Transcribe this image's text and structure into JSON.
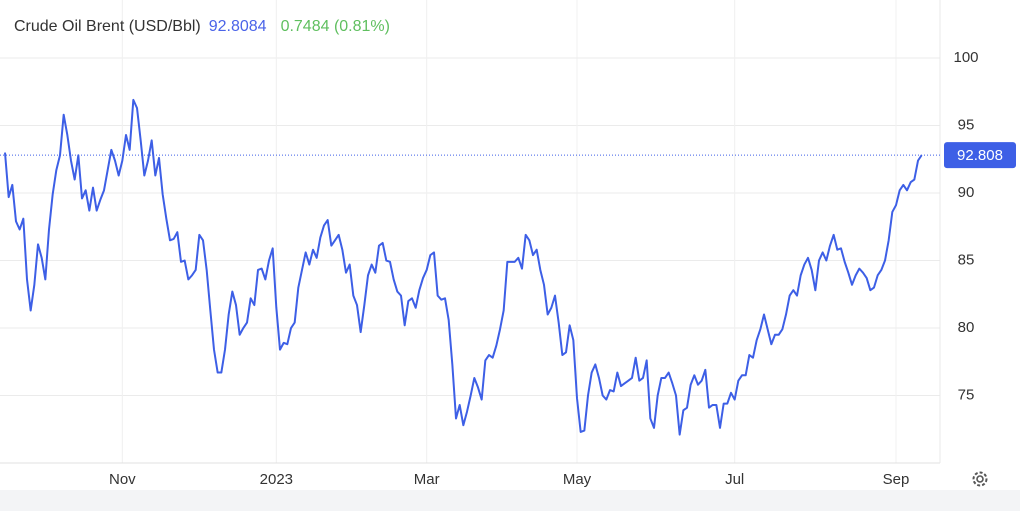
{
  "chart_data": {
    "type": "line",
    "title": "Crude Oil Brent (USD/Bbl)",
    "price": "92.8084",
    "change": "0.7484 (0.81%)",
    "series": [
      {
        "name": "Crude Oil Brent",
        "color": "#3d5fe6",
        "values": [
          93.0,
          89.7,
          90.6,
          87.9,
          87.3,
          88.1,
          83.6,
          81.3,
          83.2,
          86.2,
          85.2,
          83.6,
          87.3,
          89.9,
          91.7,
          92.8,
          95.8,
          94.3,
          92.4,
          91.0,
          92.8,
          89.6,
          90.2,
          88.7,
          90.4,
          88.7,
          89.5,
          90.2,
          91.7,
          93.2,
          92.4,
          91.3,
          92.4,
          94.3,
          93.2,
          96.9,
          96.3,
          93.9,
          91.3,
          92.4,
          93.9,
          91.3,
          92.6,
          89.9,
          88.1,
          86.5,
          86.6,
          87.1,
          84.9,
          85.0,
          83.6,
          83.9,
          84.3,
          86.9,
          86.5,
          84.3,
          81.3,
          78.4,
          76.7,
          76.7,
          78.4,
          81.0,
          82.7,
          81.7,
          79.5,
          80.0,
          80.4,
          82.2,
          81.7,
          84.3,
          84.4,
          83.6,
          85.0,
          85.9,
          81.5,
          78.4,
          78.9,
          78.8,
          80.0,
          80.4,
          83.0,
          84.3,
          85.6,
          84.7,
          85.8,
          85.2,
          86.7,
          87.6,
          88.0,
          86.1,
          86.5,
          86.9,
          85.8,
          84.1,
          84.7,
          82.4,
          81.7,
          79.7,
          81.7,
          83.9,
          84.7,
          84.1,
          86.1,
          86.3,
          85.0,
          84.9,
          83.6,
          82.7,
          82.4,
          80.2,
          82.0,
          82.2,
          81.5,
          82.8,
          83.7,
          84.3,
          85.4,
          85.6,
          82.4,
          82.1,
          82.2,
          80.6,
          77.3,
          73.3,
          74.3,
          72.8,
          73.8,
          75.0,
          76.3,
          75.6,
          74.7,
          77.6,
          78.0,
          77.8,
          78.7,
          79.9,
          81.3,
          84.9,
          84.9,
          84.9,
          85.2,
          84.4,
          86.9,
          86.5,
          85.4,
          85.8,
          84.3,
          83.2,
          81.0,
          81.5,
          82.4,
          80.4,
          78.0,
          78.2,
          80.2,
          79.1,
          74.8,
          72.3,
          72.4,
          75.0,
          76.7,
          77.3,
          76.3,
          75.0,
          74.7,
          75.4,
          75.3,
          76.7,
          75.7,
          75.9,
          76.1,
          76.3,
          77.8,
          76.1,
          76.3,
          77.6,
          73.3,
          72.6,
          75.0,
          76.3,
          76.3,
          76.7,
          75.9,
          75.0,
          72.1,
          73.9,
          74.1,
          75.8,
          76.5,
          75.8,
          76.1,
          76.9,
          74.1,
          74.3,
          74.3,
          72.6,
          74.4,
          74.4,
          75.2,
          74.7,
          76.1,
          76.5,
          76.5,
          78.0,
          77.8,
          79.1,
          79.9,
          81.0,
          79.9,
          78.8,
          79.5,
          79.5,
          79.9,
          81.0,
          82.4,
          82.8,
          82.4,
          83.9,
          84.7,
          85.2,
          84.3,
          82.8,
          85.0,
          85.6,
          85.0,
          86.1,
          86.9,
          85.8,
          85.9,
          84.9,
          84.1,
          83.2,
          83.9,
          84.4,
          84.1,
          83.7,
          82.8,
          83.0,
          83.9,
          84.3,
          85.0,
          86.5,
          88.6,
          89.1,
          90.2,
          90.6,
          90.2,
          90.8,
          91.0,
          92.4,
          92.8084
        ]
      }
    ],
    "last_price": {
      "value": 92.8084,
      "label": "92.808"
    },
    "xlim": [
      0,
      255
    ],
    "xticks": [
      {
        "value": 32,
        "label": "Nov"
      },
      {
        "value": 74,
        "label": "2023"
      },
      {
        "value": 115,
        "label": "Mar"
      },
      {
        "value": 156,
        "label": "May"
      },
      {
        "value": 199,
        "label": "Jul"
      },
      {
        "value": 243,
        "label": "Sep"
      }
    ],
    "ylim": [
      70,
      104.3
    ],
    "yticks": [
      75,
      80,
      85,
      90,
      95,
      100
    ],
    "grid": true
  }
}
